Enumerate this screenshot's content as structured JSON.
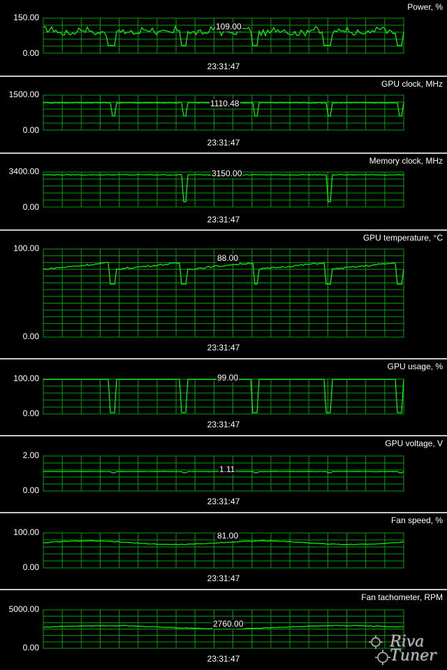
{
  "timestamp": "23:31:47",
  "grid_color": "#00a000",
  "line_color": "#00ff00",
  "logo": {
    "name": "RivaTuner logo",
    "text": "Riva\nTuner"
  },
  "panels": [
    {
      "title": "Power, %",
      "y_max_label": "150.00",
      "y_min_label": "0.00",
      "y_max": 150,
      "y_min": 0,
      "current_value": "109.00"
    },
    {
      "title": "GPU clock, MHz",
      "y_max_label": "1500.00",
      "y_min_label": "0.00",
      "y_max": 1500,
      "y_min": 0,
      "current_value": "1110.48"
    },
    {
      "title": "Memory clock, MHz",
      "y_max_label": "3400.00",
      "y_min_label": "0.00",
      "y_max": 3400,
      "y_min": 0,
      "current_value": "3150.00"
    },
    {
      "title": "GPU temperature, °C",
      "y_max_label": "100.00",
      "y_min_label": "0.00",
      "y_max": 100,
      "y_min": 0,
      "current_value": "88.00"
    },
    {
      "title": "GPU usage, %",
      "y_max_label": "100.00",
      "y_min_label": "0.00",
      "y_max": 100,
      "y_min": 0,
      "current_value": "99.00"
    },
    {
      "title": "GPU voltage, V",
      "y_max_label": "2.00",
      "y_min_label": "0.00",
      "y_max": 2,
      "y_min": 0,
      "current_value": "1.11"
    },
    {
      "title": "Fan speed, %",
      "y_max_label": "100.00",
      "y_min_label": "0.00",
      "y_max": 100,
      "y_min": 0,
      "current_value": "81.00"
    },
    {
      "title": "Fan tachometer, RPM",
      "y_max_label": "5000.00",
      "y_min_label": "0.00",
      "y_max": 5000,
      "y_min": 0,
      "current_value": "2760.00"
    }
  ]
}
